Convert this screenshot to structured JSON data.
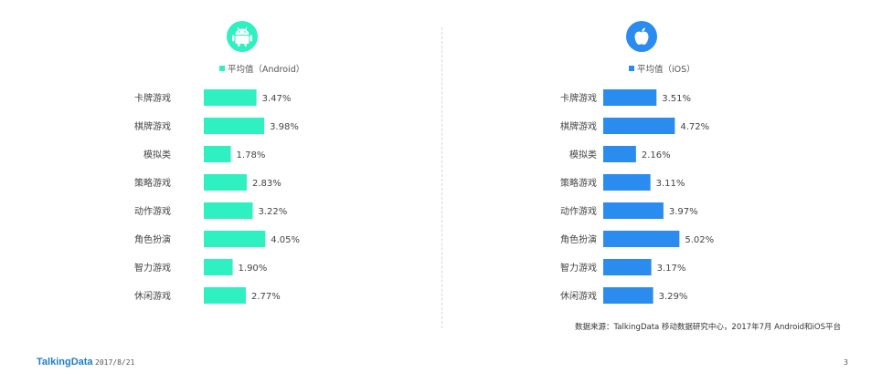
{
  "chart_data": [
    {
      "type": "bar",
      "orientation": "horizontal",
      "platform_icon": "android-icon",
      "categories": [
        "卡牌游戏",
        "棋牌游戏",
        "模拟类",
        "策略游戏",
        "动作游戏",
        "角色扮演",
        "智力游戏",
        "休闲游戏"
      ],
      "values": [
        3.47,
        3.98,
        1.78,
        2.83,
        3.22,
        4.05,
        1.9,
        2.77
      ],
      "value_labels": [
        "3.47%",
        "3.98%",
        "1.78%",
        "2.83%",
        "3.22%",
        "4.05%",
        "1.90%",
        "2.77%"
      ],
      "legend": "平均值（Android）",
      "color": "#2ef0c0",
      "unit": "%",
      "xlim": [
        0,
        5.5
      ],
      "grid": false
    },
    {
      "type": "bar",
      "orientation": "horizontal",
      "platform_icon": "apple-icon",
      "categories": [
        "卡牌游戏",
        "棋牌游戏",
        "模拟类",
        "策略游戏",
        "动作游戏",
        "角色扮演",
        "智力游戏",
        "休闲游戏"
      ],
      "values": [
        3.51,
        4.72,
        2.16,
        3.11,
        3.97,
        5.02,
        3.17,
        3.29
      ],
      "value_labels": [
        "3.51%",
        "4.72%",
        "2.16%",
        "3.11%",
        "3.97%",
        "5.02%",
        "3.17%",
        "3.29%"
      ],
      "legend": "平均值（iOS）",
      "color": "#2b8cf0",
      "unit": "%",
      "xlim": [
        0,
        5.5
      ],
      "grid": false
    }
  ],
  "source": "数据来源：TalkingData 移动数据研究中心，2017年7月 Android和iOS平台",
  "footer": {
    "brand": "TalkingData",
    "date": "2017/8/21",
    "page": "3"
  }
}
